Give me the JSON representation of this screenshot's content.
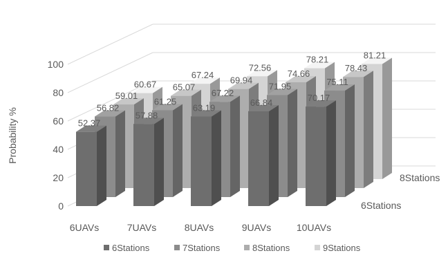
{
  "chart_data": {
    "type": "bar",
    "variant": "3d-column",
    "categories": [
      "6UAVs",
      "7UAVs",
      "8UAVs",
      "9UAVs",
      "10UAVs"
    ],
    "series": [
      {
        "name": "6Stations",
        "values": [
          52.37,
          57.88,
          63.19,
          66.84,
          70.17
        ],
        "color": "#6e6e6e"
      },
      {
        "name": "7Stations",
        "values": [
          56.82,
          61.25,
          67.22,
          71.95,
          75.11
        ],
        "color": "#8c8c8c"
      },
      {
        "name": "8Stations",
        "values": [
          59.01,
          65.07,
          69.94,
          74.66,
          78.43
        ],
        "color": "#adadad"
      },
      {
        "name": "9Stations",
        "values": [
          60.67,
          67.24,
          72.56,
          78.21,
          81.21
        ],
        "color": "#d4d4d4"
      }
    ],
    "ylabel": "Probability %",
    "ylim": [
      0,
      100
    ],
    "yticks": [
      0,
      20,
      40,
      60,
      80,
      100
    ],
    "depth_axis_labels": [
      "6Stations",
      "8Stations"
    ],
    "grid": true,
    "legend_position": "bottom"
  }
}
